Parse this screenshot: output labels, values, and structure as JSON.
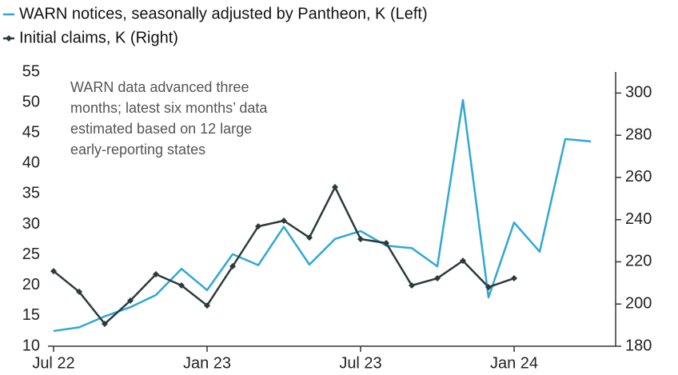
{
  "chart_data": {
    "type": "line",
    "annotation": [
      "WARN data advanced three",
      "months; latest six months’ data",
      "estimated based on 12 large",
      "early-reporting states"
    ],
    "categories": [
      "Jul 22",
      null,
      null,
      null,
      null,
      null,
      "Jan 23",
      null,
      null,
      null,
      null,
      null,
      "Jul 23",
      null,
      null,
      null,
      null,
      null,
      "Jan 24",
      null,
      null,
      null
    ],
    "ylim": [
      10,
      55
    ],
    "yticks": [
      10,
      15,
      20,
      25,
      30,
      35,
      40,
      45,
      50,
      55
    ],
    "y2lim": [
      180,
      310
    ],
    "y2ticks": [
      180,
      200,
      220,
      240,
      260,
      280,
      300
    ],
    "grid": false,
    "series": [
      {
        "name": "WARN notices, seasonally adjusted by Pantheon, K (Left)",
        "color": "#2ea8d5",
        "values": [
          12.5,
          13.1,
          14.9,
          16.4,
          18.4,
          22.7,
          19.2,
          25.1,
          23.3,
          29.6,
          23.4,
          27.6,
          28.9,
          26.5,
          26.1,
          23.1,
          50.4,
          18.0,
          30.3,
          25.5,
          44.0,
          43.6
        ]
      },
      {
        "name": "Initial claims, K (Right)",
        "color": "#2b3b3b",
        "axis": "y2",
        "markers": true,
        "values": [
          215.6,
          205.8,
          190.6,
          201.6,
          214.1,
          208.8,
          199.3,
          217.9,
          236.8,
          239.5,
          231.5,
          255.4,
          230.8,
          228.9,
          208.8,
          212.2,
          220.5,
          208.0,
          212.2,
          null,
          null,
          null
        ]
      }
    ]
  }
}
